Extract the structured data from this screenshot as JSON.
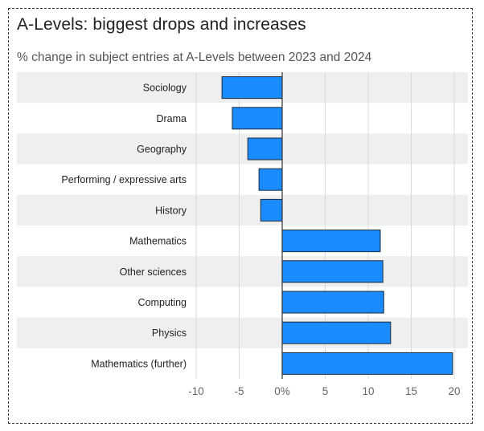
{
  "title": "A-Levels: biggest drops and increases",
  "subtitle": "% change in subject entries at A-Levels between 2023 and 2024",
  "colors": {
    "bar": "#1a8cff",
    "bar_stroke": "#1c2a3a",
    "band": "#efefef",
    "grid": "#d9d9d9",
    "zero_line": "#333333"
  },
  "chart_data": {
    "type": "bar",
    "orientation": "horizontal",
    "categories": [
      "Sociology",
      "Drama",
      "Geography",
      "Performing / expressive arts",
      "History",
      "Mathematics",
      "Other sciences",
      "Computing",
      "Physics",
      "Mathematics (further)"
    ],
    "values": [
      -7.0,
      -5.8,
      -4.0,
      -2.7,
      -2.5,
      11.4,
      11.7,
      11.8,
      12.6,
      19.8
    ],
    "xlim": [
      -10,
      20
    ],
    "xticks": [
      -10,
      -5,
      0,
      5,
      10,
      15,
      20
    ],
    "xtick_labels": [
      "-10",
      "-5",
      "0%",
      "5",
      "10",
      "15",
      "20"
    ],
    "title": "A-Levels: biggest drops and increases",
    "subtitle": "% change in subject entries at A-Levels between 2023 and 2024",
    "xlabel": "",
    "ylabel": "",
    "grid": true
  }
}
